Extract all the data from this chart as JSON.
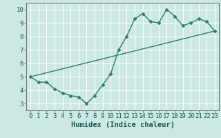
{
  "zigzag_x": [
    0,
    1,
    2,
    3,
    4,
    5,
    6,
    7,
    8,
    9,
    10,
    11,
    12,
    13,
    14,
    15,
    16,
    17,
    18,
    19,
    20,
    21,
    22,
    23
  ],
  "zigzag_y": [
    5.0,
    4.6,
    4.6,
    4.1,
    3.8,
    3.6,
    3.5,
    3.0,
    3.6,
    4.4,
    5.2,
    7.0,
    8.0,
    9.3,
    9.7,
    9.1,
    9.0,
    10.0,
    9.5,
    8.8,
    9.0,
    9.3,
    9.1,
    8.4
  ],
  "trend_x": [
    0,
    23
  ],
  "trend_y": [
    5.0,
    8.4
  ],
  "line_color": "#2e7d72",
  "bg_color": "#cce8e3",
  "grid_color": "#ffffff",
  "xlabel": "Humidex (Indice chaleur)",
  "ylim": [
    2.5,
    10.5
  ],
  "xlim": [
    -0.5,
    23.5
  ],
  "yticks": [
    3,
    4,
    5,
    6,
    7,
    8,
    9,
    10
  ],
  "xticks": [
    0,
    1,
    2,
    3,
    4,
    5,
    6,
    7,
    8,
    9,
    10,
    11,
    12,
    13,
    14,
    15,
    16,
    17,
    18,
    19,
    20,
    21,
    22,
    23
  ],
  "marker": "D",
  "markersize": 2.5,
  "linewidth": 1.0,
  "tick_fontsize": 6.5,
  "xlabel_fontsize": 7.5
}
